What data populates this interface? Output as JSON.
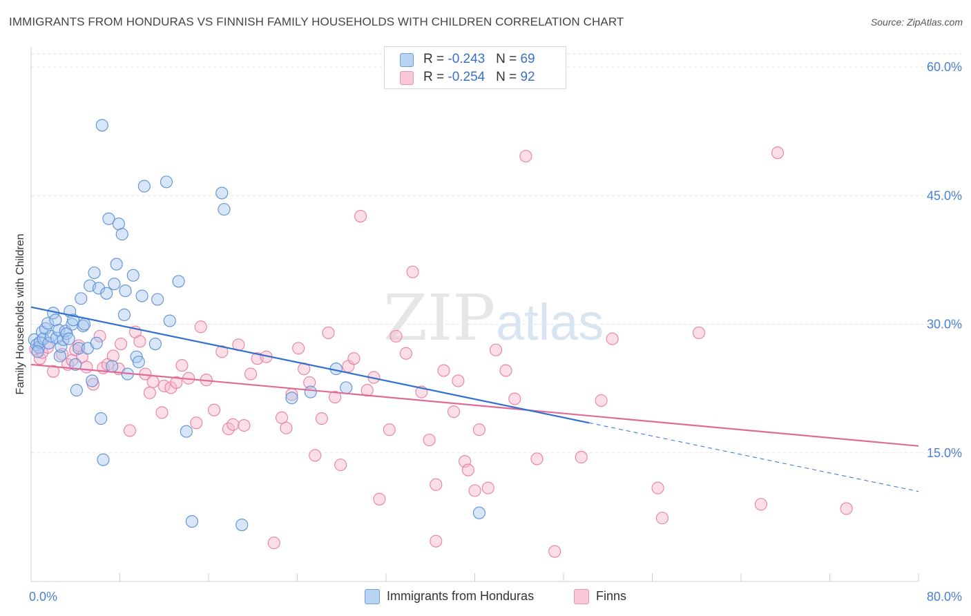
{
  "title": "IMMIGRANTS FROM HONDURAS VS FINNISH FAMILY HOUSEHOLDS WITH CHILDREN CORRELATION CHART",
  "source": "Source: ZipAtlas.com",
  "watermark": {
    "zip": "ZIP",
    "atlas": "atlas"
  },
  "legend_top": [
    {
      "r_label": "R = ",
      "r_value": "-0.243",
      "n_label": "N = ",
      "n_value": "69"
    },
    {
      "r_label": "R = ",
      "r_value": "-0.254",
      "n_label": "N = ",
      "n_value": "92"
    }
  ],
  "legend_bottom": [
    "Immigrants from Honduras",
    "Finns"
  ],
  "colors": {
    "blue_fill": "#a9c8f0",
    "blue_stroke": "#5b8fd6",
    "blue_line": "#2f6fd0",
    "pink_fill": "#f7b6cb",
    "pink_stroke": "#e87fa0",
    "pink_line": "#e06a96",
    "tick_text": "#4a7fd4",
    "grid": "#e2e2e2"
  },
  "chart_data": {
    "type": "scatter",
    "title": "IMMIGRANTS FROM HONDURAS VS FINNISH FAMILY HOUSEHOLDS WITH CHILDREN CORRELATION CHART",
    "xlabel": "",
    "ylabel": "Family Households with Children",
    "xlim": [
      0,
      80
    ],
    "ylim": [
      0,
      60
    ],
    "x_ticks": [
      "0.0%",
      "80.0%"
    ],
    "y_ticks": [
      "15.0%",
      "30.0%",
      "45.0%",
      "60.0%"
    ],
    "y_tick_values": [
      15,
      30,
      45,
      60
    ],
    "grid": true,
    "legend_position": "top-center",
    "series": [
      {
        "name": "Immigrants from Honduras",
        "r": -0.243,
        "n": 69,
        "trend": {
          "x0": 0,
          "y0": 32.0,
          "x1": 50.3,
          "y1": 18.5,
          "dashed_to_x": 80,
          "dashed_to_y": 10.5
        },
        "points": [
          [
            0.3,
            28.2
          ],
          [
            0.5,
            27.6
          ],
          [
            0.7,
            27.3
          ],
          [
            0.8,
            27.9
          ],
          [
            1.0,
            29.1
          ],
          [
            1.1,
            28.3
          ],
          [
            1.3,
            29.5
          ],
          [
            1.5,
            30.1
          ],
          [
            1.6,
            27.8
          ],
          [
            1.8,
            28.6
          ],
          [
            2.0,
            31.3
          ],
          [
            2.2,
            30.5
          ],
          [
            2.3,
            28.4
          ],
          [
            2.5,
            29.3
          ],
          [
            2.6,
            26.3
          ],
          [
            2.7,
            27.4
          ],
          [
            2.9,
            28.2
          ],
          [
            3.1,
            29.2
          ],
          [
            3.2,
            28.9
          ],
          [
            3.5,
            31.5
          ],
          [
            3.7,
            30.0
          ],
          [
            3.8,
            30.5
          ],
          [
            4.0,
            25.3
          ],
          [
            4.1,
            22.3
          ],
          [
            4.3,
            27.2
          ],
          [
            4.5,
            33.0
          ],
          [
            4.7,
            29.8
          ],
          [
            4.8,
            30.0
          ],
          [
            5.1,
            27.2
          ],
          [
            5.3,
            34.5
          ],
          [
            5.5,
            23.4
          ],
          [
            5.7,
            36.0
          ],
          [
            5.9,
            27.8
          ],
          [
            6.1,
            34.2
          ],
          [
            6.3,
            19.0
          ],
          [
            6.4,
            53.2
          ],
          [
            6.5,
            14.2
          ],
          [
            6.8,
            33.6
          ],
          [
            7.0,
            42.3
          ],
          [
            7.3,
            25.1
          ],
          [
            7.5,
            34.7
          ],
          [
            7.7,
            37.0
          ],
          [
            7.9,
            41.7
          ],
          [
            8.2,
            40.5
          ],
          [
            8.4,
            31.1
          ],
          [
            8.5,
            33.9
          ],
          [
            8.7,
            24.2
          ],
          [
            9.2,
            35.7
          ],
          [
            9.5,
            26.2
          ],
          [
            9.7,
            25.6
          ],
          [
            10.0,
            33.3
          ],
          [
            10.2,
            46.1
          ],
          [
            11.2,
            27.7
          ],
          [
            11.4,
            32.9
          ],
          [
            12.2,
            46.6
          ],
          [
            12.5,
            30.4
          ],
          [
            13.3,
            35.0
          ],
          [
            14.0,
            17.5
          ],
          [
            14.5,
            7.0
          ],
          [
            17.2,
            45.3
          ],
          [
            17.4,
            43.4
          ],
          [
            19.0,
            6.6
          ],
          [
            23.5,
            21.4
          ],
          [
            25.2,
            22.1
          ],
          [
            27.5,
            24.8
          ],
          [
            28.4,
            22.6
          ],
          [
            40.4,
            8.0
          ],
          [
            0.6,
            26.8
          ],
          [
            3.4,
            28.3
          ]
        ]
      },
      {
        "name": "Finns",
        "r": -0.254,
        "n": 92,
        "trend": {
          "x0": 0,
          "y0": 25.3,
          "x1": 80,
          "y1": 15.8
        },
        "points": [
          [
            0.4,
            27.1
          ],
          [
            0.8,
            26.0
          ],
          [
            1.0,
            26.7
          ],
          [
            1.5,
            27.3
          ],
          [
            2.0,
            24.5
          ],
          [
            2.8,
            26.5
          ],
          [
            3.3,
            25.3
          ],
          [
            3.7,
            25.8
          ],
          [
            4.0,
            27.0
          ],
          [
            4.3,
            27.5
          ],
          [
            4.6,
            26.2
          ],
          [
            5.0,
            25.0
          ],
          [
            5.6,
            23.0
          ],
          [
            6.2,
            28.6
          ],
          [
            6.5,
            24.9
          ],
          [
            6.9,
            25.3
          ],
          [
            7.4,
            26.3
          ],
          [
            7.9,
            24.8
          ],
          [
            8.1,
            27.7
          ],
          [
            8.9,
            17.6
          ],
          [
            9.4,
            29.1
          ],
          [
            9.8,
            28.0
          ],
          [
            10.3,
            24.2
          ],
          [
            10.7,
            22.0
          ],
          [
            11.0,
            23.3
          ],
          [
            11.8,
            19.7
          ],
          [
            12.0,
            22.8
          ],
          [
            12.6,
            22.6
          ],
          [
            13.1,
            23.2
          ],
          [
            13.6,
            25.2
          ],
          [
            14.2,
            23.7
          ],
          [
            14.9,
            18.5
          ],
          [
            15.3,
            29.7
          ],
          [
            15.8,
            23.5
          ],
          [
            16.5,
            20.0
          ],
          [
            17.2,
            26.8
          ],
          [
            17.8,
            17.8
          ],
          [
            18.2,
            18.3
          ],
          [
            18.7,
            27.6
          ],
          [
            19.2,
            18.2
          ],
          [
            19.8,
            24.2
          ],
          [
            20.4,
            26.0
          ],
          [
            21.2,
            26.2
          ],
          [
            21.9,
            4.5
          ],
          [
            22.6,
            19.1
          ],
          [
            23.0,
            17.9
          ],
          [
            23.5,
            21.8
          ],
          [
            24.1,
            27.2
          ],
          [
            24.6,
            24.8
          ],
          [
            25.1,
            23.2
          ],
          [
            25.6,
            14.7
          ],
          [
            26.2,
            19.0
          ],
          [
            26.8,
            29.0
          ],
          [
            27.4,
            21.5
          ],
          [
            27.9,
            13.6
          ],
          [
            28.6,
            25.1
          ],
          [
            29.1,
            26.0
          ],
          [
            29.7,
            42.6
          ],
          [
            30.3,
            22.3
          ],
          [
            30.9,
            23.8
          ],
          [
            31.4,
            9.6
          ],
          [
            32.3,
            17.7
          ],
          [
            32.9,
            28.6
          ],
          [
            33.8,
            26.6
          ],
          [
            34.4,
            36.1
          ],
          [
            35.2,
            22.1
          ],
          [
            35.9,
            16.5
          ],
          [
            36.5,
            11.3
          ],
          [
            37.2,
            24.6
          ],
          [
            38.1,
            19.8
          ],
          [
            38.5,
            23.4
          ],
          [
            39.1,
            14.0
          ],
          [
            39.4,
            13.0
          ],
          [
            40.0,
            10.6
          ],
          [
            40.4,
            17.7
          ],
          [
            41.2,
            10.9
          ],
          [
            41.9,
            27.0
          ],
          [
            42.8,
            24.6
          ],
          [
            43.6,
            21.3
          ],
          [
            44.6,
            49.6
          ],
          [
            45.6,
            14.3
          ],
          [
            47.2,
            3.5
          ],
          [
            49.6,
            14.5
          ],
          [
            51.4,
            21.1
          ],
          [
            52.4,
            28.3
          ],
          [
            56.5,
            10.9
          ],
          [
            56.9,
            7.4
          ],
          [
            60.2,
            29.0
          ],
          [
            65.8,
            9.0
          ],
          [
            67.3,
            50.0
          ],
          [
            73.5,
            8.5
          ],
          [
            36.5,
            4.7
          ]
        ]
      }
    ]
  }
}
